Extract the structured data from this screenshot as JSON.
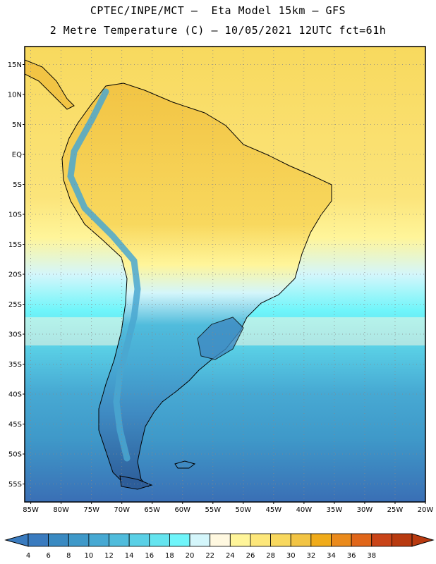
{
  "header": {
    "line1": "CPTEC/INPE/MCT –  Eta Model 15km – GFS",
    "line2": "2 Metre Temperature (C) – 10/05/2021 12UTC fct=61h"
  },
  "map": {
    "lat_labels": [
      "15N",
      "10N",
      "5N",
      "EQ",
      "5S",
      "10S",
      "15S",
      "20S",
      "25S",
      "30S",
      "35S",
      "40S",
      "45S",
      "50S",
      "55S"
    ],
    "lat_values": [
      15,
      10,
      5,
      0,
      -5,
      -10,
      -15,
      -20,
      -25,
      -30,
      -35,
      -40,
      -45,
      -50,
      -55
    ],
    "lon_labels": [
      "85W",
      "80W",
      "75W",
      "70W",
      "65W",
      "60W",
      "55W",
      "50W",
      "45W",
      "40W",
      "35W",
      "30W",
      "25W",
      "20W"
    ],
    "lon_values": [
      -85,
      -80,
      -75,
      -70,
      -65,
      -60,
      -55,
      -50,
      -45,
      -40,
      -35,
      -30,
      -25,
      -20
    ],
    "lat_range": [
      -58,
      18
    ],
    "lon_range": [
      -86,
      -20
    ],
    "gridlines": true
  },
  "colorbar": {
    "labels": [
      "4",
      "6",
      "8",
      "10",
      "12",
      "14",
      "16",
      "18",
      "20",
      "22",
      "24",
      "26",
      "28",
      "30",
      "32",
      "34",
      "36",
      "38"
    ],
    "colors": [
      "#3a7bbf",
      "#3a8ac2",
      "#3f99c9",
      "#47a9d3",
      "#50bcdc",
      "#5ad0e6",
      "#64e4ef",
      "#6ff5fa",
      "#d4f6fb",
      "#fff8e0",
      "#fff59a",
      "#fde77a",
      "#f8d85e",
      "#f2c444",
      "#f0ab1a",
      "#ea8a1c",
      "#e0661a",
      "#c94418",
      "#b83a10"
    ]
  }
}
